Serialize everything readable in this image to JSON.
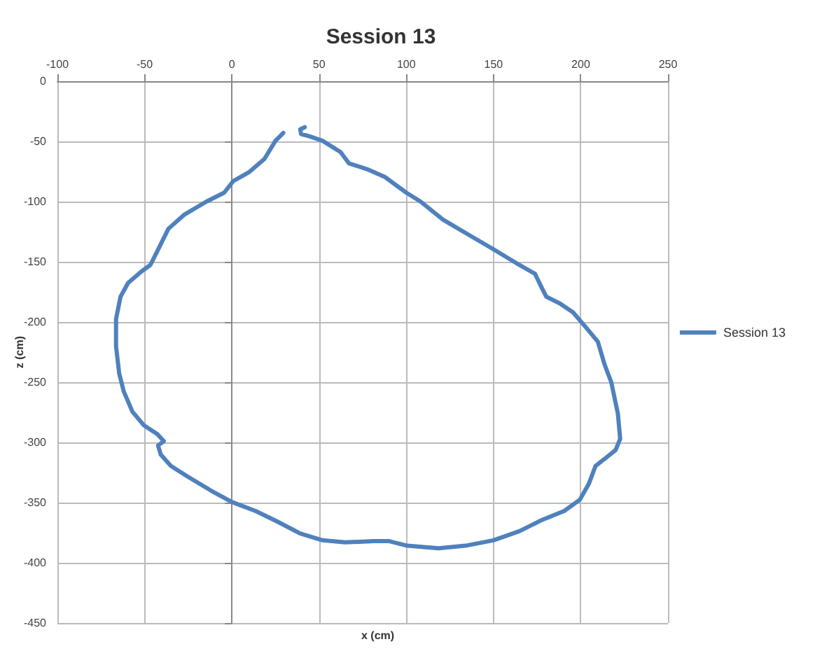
{
  "chart_data": {
    "type": "line",
    "title": "Session 13",
    "xlabel": "x (cm)",
    "ylabel": "z (cm)",
    "xlim": [
      -100,
      250
    ],
    "xticks": [
      -100,
      -50,
      0,
      50,
      100,
      150,
      200,
      250
    ],
    "ylim": [
      -450,
      0
    ],
    "yticks": [
      -450,
      -400,
      -350,
      -300,
      -250,
      -200,
      -150,
      -100,
      -50,
      0
    ],
    "grid": true,
    "legend": "right",
    "marker": "none",
    "line_style": "solid",
    "series": [
      {
        "name": "Session 13",
        "color": "#4f81bd",
        "x": [
          29.5,
          25,
          18.7,
          9.7,
          0.8,
          -4.4,
          -14.6,
          -27.4,
          -36.4,
          -41.5,
          -46.7,
          -51.8,
          -59.5,
          -63.8,
          -66.4,
          -66.4,
          -64.6,
          -62,
          -57,
          -50.5,
          -42.8,
          -39,
          -42.3,
          -40.8,
          -35,
          -24.9,
          -12,
          0,
          13.6,
          26.4,
          39.2,
          52,
          64.9,
          81.5,
          90.2,
          100.5,
          118.5,
          133.9,
          149.9,
          164.8,
          177.6,
          190.5,
          199.5,
          204.6,
          208.5,
          213.6,
          220,
          222.6,
          221.3,
          217.5,
          213.6,
          209.8,
          203.3,
          195.6,
          187.9,
          180.2,
          177.6,
          173.8,
          164.8,
          149.9,
          136.5,
          121.1,
          108.2,
          100,
          87.7,
          77.4,
          67.1,
          62.3,
          52,
          44.4,
          39.7,
          39.2,
          41.8
        ],
        "values": [
          -43,
          -49.5,
          -64.5,
          -75.7,
          -83,
          -92.6,
          -100,
          -111,
          -122.6,
          -137.6,
          -152.6,
          -158,
          -167.6,
          -178.9,
          -197.6,
          -220,
          -242.6,
          -257.6,
          -274.5,
          -285.7,
          -293,
          -299,
          -302.6,
          -310,
          -319.5,
          -328.8,
          -340,
          -349.5,
          -357,
          -366,
          -375.7,
          -381.3,
          -383,
          -382,
          -382,
          -385.8,
          -388,
          -385.8,
          -381.3,
          -373.8,
          -364.5,
          -357,
          -347.6,
          -334.5,
          -319.5,
          -313.8,
          -306.3,
          -297,
          -276.3,
          -250,
          -235,
          -216.4,
          -205,
          -192,
          -184.5,
          -178.9,
          -171.4,
          -160,
          -152.6,
          -139.5,
          -128.2,
          -115,
          -100,
          -92.6,
          -79.5,
          -73,
          -68.2,
          -58.9,
          -49.5,
          -45.7,
          -43.9,
          -40,
          -38.2
        ]
      }
    ]
  }
}
